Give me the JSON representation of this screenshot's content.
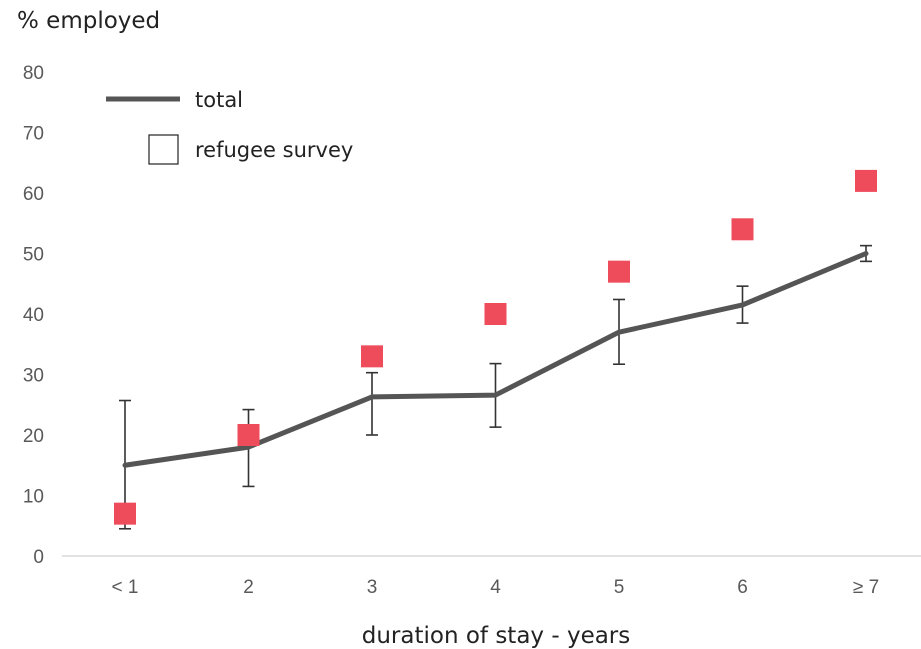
{
  "chart_data": {
    "type": "line",
    "ylabel": "% employed",
    "xlabel": "duration of stay - years",
    "categories": [
      "< 1",
      "2",
      "3",
      "4",
      "5",
      "6",
      "≥ 7"
    ],
    "yticks": [
      "0",
      "10",
      "20",
      "30",
      "40",
      "50",
      "60",
      "70",
      "80"
    ],
    "ylim": [
      0,
      80
    ],
    "grid": false,
    "legend": {
      "position": "top-left",
      "entries": [
        {
          "label": "total",
          "marker": "line"
        },
        {
          "label": "refugee survey",
          "marker": "square"
        }
      ]
    },
    "series": [
      {
        "name": "total",
        "color": "#555555",
        "values": [
          15,
          18,
          26.3,
          26.6,
          37,
          41.5,
          50
        ],
        "error_low": [
          4.5,
          11.5,
          20,
          21.3,
          31.7,
          38.5,
          48.7
        ],
        "error_high": [
          25.7,
          24.2,
          30.3,
          31.8,
          42.4,
          44.6,
          51.3
        ]
      },
      {
        "name": "refugee survey",
        "color": "#EE4B5B",
        "values": [
          7,
          20,
          33,
          40,
          47,
          54,
          62
        ]
      }
    ]
  }
}
